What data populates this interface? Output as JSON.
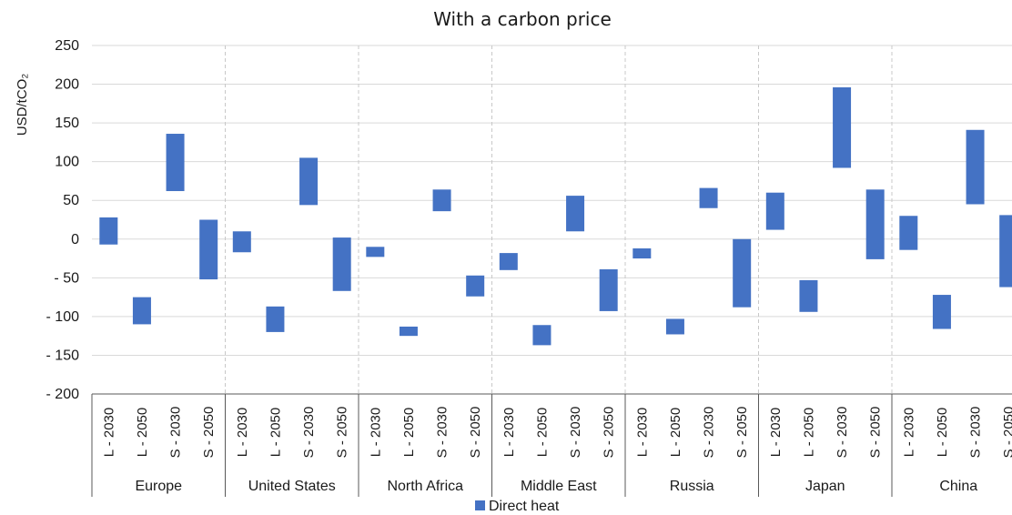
{
  "chart_data": {
    "type": "floating-bar",
    "title": "With a carbon price",
    "ylabel": "USD/tCO₂",
    "ylim": [
      -200,
      250
    ],
    "yticks": [
      250,
      200,
      150,
      100,
      50,
      0,
      -50,
      -100,
      -150,
      -200
    ],
    "ytick_labels": [
      "250",
      "200",
      "150",
      "100",
      "50",
      "0",
      "- 50",
      "- 100",
      "- 150",
      "- 200"
    ],
    "grid": true,
    "legend_position": "bottom",
    "series": [
      {
        "name": "Direct heat",
        "color": "#4472c4"
      }
    ],
    "subcategories": [
      "L - 2030",
      "L - 2050",
      "S - 2030",
      "S - 2050"
    ],
    "groups": [
      {
        "name": "Europe",
        "ranges": [
          [
            -7,
            28
          ],
          [
            -110,
            -75
          ],
          [
            62,
            136
          ],
          [
            -52,
            25
          ]
        ]
      },
      {
        "name": "United States",
        "ranges": [
          [
            -17,
            10
          ],
          [
            -120,
            -87
          ],
          [
            44,
            105
          ],
          [
            -67,
            2
          ]
        ]
      },
      {
        "name": "North Africa",
        "ranges": [
          [
            -23,
            -10
          ],
          [
            -125,
            -113
          ],
          [
            36,
            64
          ],
          [
            -74,
            -47
          ]
        ]
      },
      {
        "name": "Middle East",
        "ranges": [
          [
            -40,
            -18
          ],
          [
            -137,
            -111
          ],
          [
            10,
            56
          ],
          [
            -93,
            -39
          ]
        ]
      },
      {
        "name": "Russia",
        "ranges": [
          [
            -25,
            -12
          ],
          [
            -123,
            -103
          ],
          [
            40,
            66
          ],
          [
            -88,
            0
          ]
        ]
      },
      {
        "name": "Japan",
        "ranges": [
          [
            12,
            60
          ],
          [
            -94,
            -53
          ],
          [
            92,
            196
          ],
          [
            -26,
            64
          ]
        ]
      },
      {
        "name": "China",
        "ranges": [
          [
            -14,
            30
          ],
          [
            -116,
            -72
          ],
          [
            45,
            141
          ],
          [
            -62,
            31
          ]
        ]
      }
    ]
  }
}
